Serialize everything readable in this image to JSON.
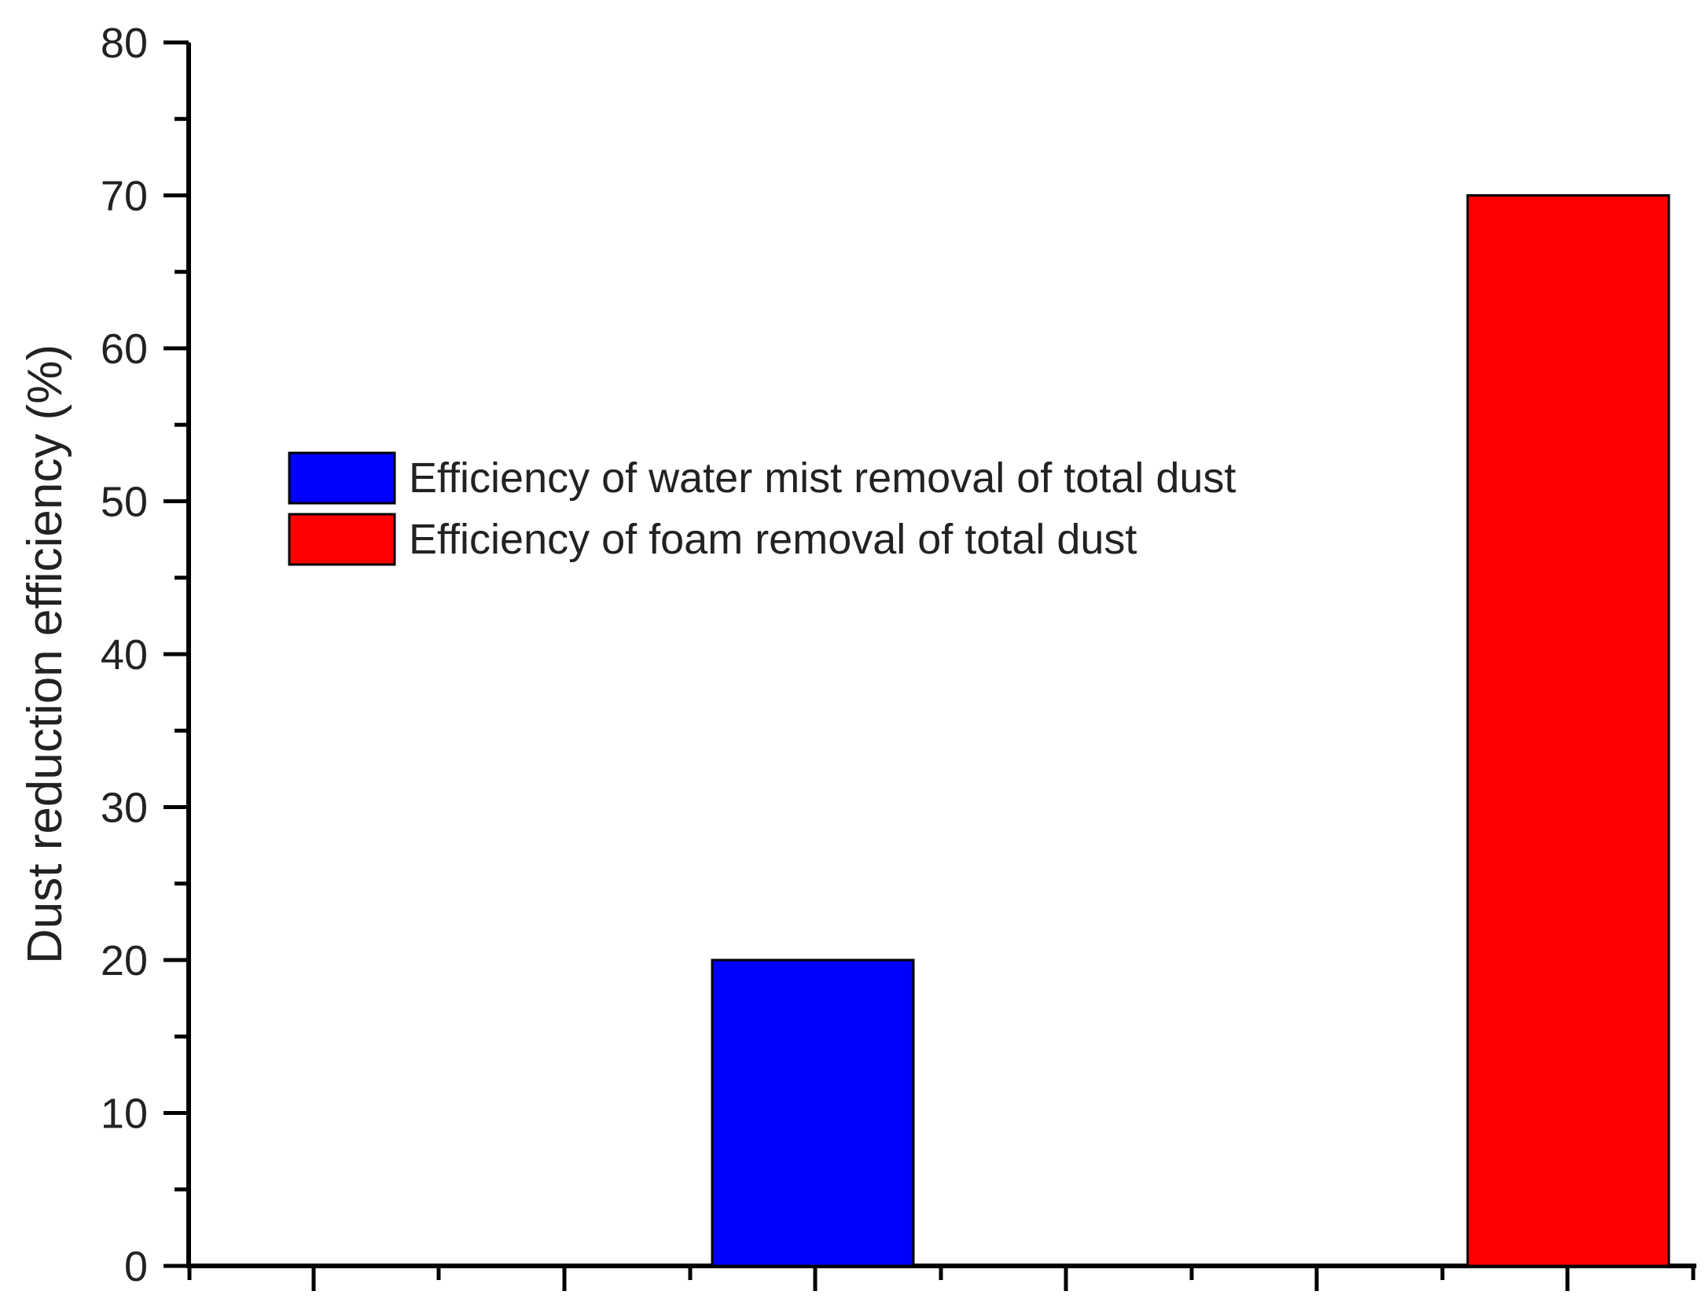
{
  "chart_data": {
    "type": "bar",
    "ylabel": "Dust reduction efficiency (%)",
    "xlabel": "",
    "ylim": [
      0,
      80
    ],
    "y_ticks": [
      "0",
      "10",
      "20",
      "30",
      "40",
      "50",
      "60",
      "70",
      "80"
    ],
    "y_minor_ticks": true,
    "x_tick_labels": false,
    "grid": false,
    "legend_position": "upper-left-center",
    "series": [
      {
        "name": "Efficiency of water mist removal of total dust",
        "value": 20,
        "color": "#0000ff"
      },
      {
        "name": "Efficiency of foam removal of total dust",
        "value": 70,
        "color": "#ff0000"
      }
    ]
  }
}
